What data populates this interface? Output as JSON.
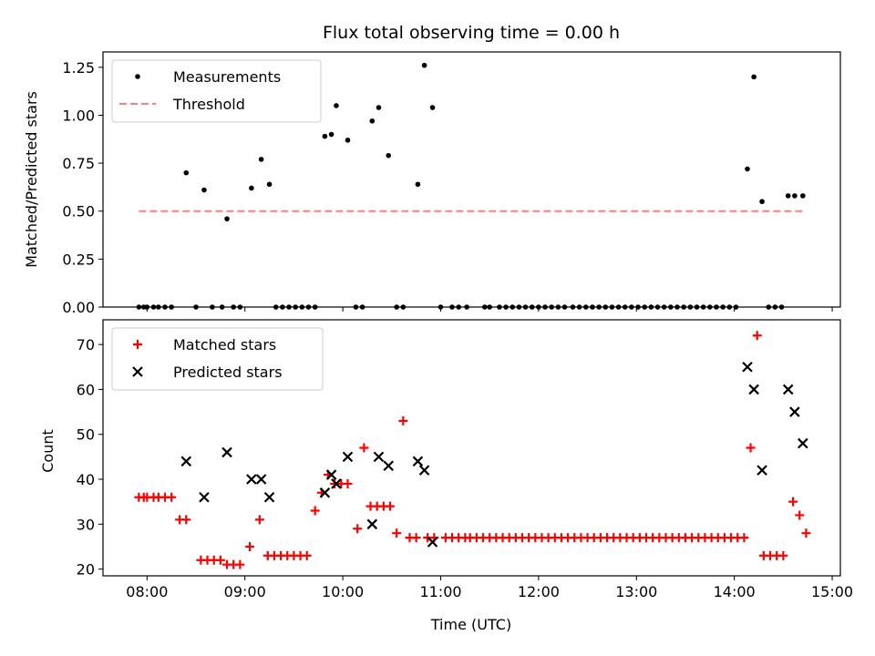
{
  "chart_data": [
    {
      "type": "scatter",
      "title": "Flux total observing time = 0.00 h",
      "xlabel": "",
      "ylabel": "Matched/Predicted stars",
      "xlim": [
        "07:33",
        "15:05"
      ],
      "ylim": [
        0,
        1.33
      ],
      "yticks": [
        "0.00",
        "0.25",
        "0.50",
        "0.75",
        "1.00",
        "1.25"
      ],
      "ytick_values": [
        0,
        0.25,
        0.5,
        0.75,
        1.0,
        1.25
      ],
      "xtick_values": [
        "08:00",
        "09:00",
        "10:00",
        "11:00",
        "12:00",
        "13:00",
        "14:00",
        "15:00"
      ],
      "legend": {
        "position": "top-left",
        "entries": [
          "Measurements",
          "Threshold"
        ]
      },
      "series": [
        {
          "name": "Measurements",
          "marker": "dot",
          "color": "#000000",
          "points": [
            [
              "07:55",
              0
            ],
            [
              "07:58",
              0
            ],
            [
              "08:00",
              0
            ],
            [
              "08:04",
              0
            ],
            [
              "08:07",
              0
            ],
            [
              "08:11",
              0
            ],
            [
              "08:15",
              0
            ],
            [
              "08:24",
              0.7
            ],
            [
              "08:30",
              0
            ],
            [
              "08:35",
              0.61
            ],
            [
              "08:40",
              0
            ],
            [
              "08:46",
              0
            ],
            [
              "08:49",
              0.46
            ],
            [
              "08:53",
              0
            ],
            [
              "08:57",
              0
            ],
            [
              "09:04",
              0.62
            ],
            [
              "09:10",
              0.77
            ],
            [
              "09:15",
              0.64
            ],
            [
              "09:19",
              0
            ],
            [
              "09:23",
              0
            ],
            [
              "09:27",
              0
            ],
            [
              "09:31",
              0
            ],
            [
              "09:35",
              0
            ],
            [
              "09:39",
              0
            ],
            [
              "09:43",
              0
            ],
            [
              "09:49",
              0.89
            ],
            [
              "09:53",
              0.9
            ],
            [
              "09:56",
              1.05
            ],
            [
              "10:03",
              0.87
            ],
            [
              "10:08",
              0
            ],
            [
              "10:12",
              0
            ],
            [
              "10:18",
              0.97
            ],
            [
              "10:22",
              1.04
            ],
            [
              "10:28",
              0.79
            ],
            [
              "10:33",
              0
            ],
            [
              "10:37",
              0
            ],
            [
              "10:46",
              0.64
            ],
            [
              "10:50",
              1.26
            ],
            [
              "10:55",
              1.04
            ],
            [
              "11:00",
              0
            ],
            [
              "11:07",
              0
            ],
            [
              "11:11",
              0
            ],
            [
              "11:16",
              0
            ],
            [
              "11:27",
              0
            ],
            [
              "11:30",
              0
            ],
            [
              "11:36",
              0
            ],
            [
              "11:40",
              0
            ],
            [
              "11:44",
              0
            ],
            [
              "11:48",
              0
            ],
            [
              "11:52",
              0
            ],
            [
              "11:56",
              0
            ],
            [
              "12:00",
              0
            ],
            [
              "12:04",
              0
            ],
            [
              "12:08",
              0
            ],
            [
              "12:12",
              0
            ],
            [
              "12:16",
              0
            ],
            [
              "12:21",
              0
            ],
            [
              "12:25",
              0
            ],
            [
              "12:29",
              0
            ],
            [
              "12:33",
              0
            ],
            [
              "12:37",
              0
            ],
            [
              "12:41",
              0
            ],
            [
              "12:45",
              0
            ],
            [
              "12:49",
              0
            ],
            [
              "12:53",
              0
            ],
            [
              "12:57",
              0
            ],
            [
              "13:01",
              0
            ],
            [
              "13:05",
              0
            ],
            [
              "13:09",
              0
            ],
            [
              "13:13",
              0
            ],
            [
              "13:17",
              0
            ],
            [
              "13:21",
              0
            ],
            [
              "13:25",
              0
            ],
            [
              "13:29",
              0
            ],
            [
              "13:33",
              0
            ],
            [
              "13:37",
              0
            ],
            [
              "13:41",
              0
            ],
            [
              "13:45",
              0
            ],
            [
              "13:49",
              0
            ],
            [
              "13:53",
              0
            ],
            [
              "13:57",
              0
            ],
            [
              "14:01",
              0
            ],
            [
              "14:08",
              0.72
            ],
            [
              "14:12",
              1.2
            ],
            [
              "14:17",
              0.55
            ],
            [
              "14:21",
              0
            ],
            [
              "14:25",
              0
            ],
            [
              "14:29",
              0
            ],
            [
              "14:33",
              0.58
            ],
            [
              "14:37",
              0.58
            ],
            [
              "14:42",
              0.58
            ]
          ]
        },
        {
          "name": "Threshold",
          "style": "dashed",
          "color": "#ff7f7f",
          "points": [
            [
              "07:55",
              0.5
            ],
            [
              "14:42",
              0.5
            ]
          ]
        }
      ]
    },
    {
      "type": "scatter",
      "title": "",
      "xlabel": "Time (UTC)",
      "ylabel": "Count",
      "xlim": [
        "07:33",
        "15:05"
      ],
      "ylim": [
        18.5,
        75.5
      ],
      "yticks": [
        "20",
        "30",
        "40",
        "50",
        "60",
        "70"
      ],
      "ytick_values": [
        20,
        30,
        40,
        50,
        60,
        70
      ],
      "xticks": [
        "08:00",
        "09:00",
        "10:00",
        "11:00",
        "12:00",
        "13:00",
        "14:00",
        "15:00"
      ],
      "legend": {
        "position": "top-left",
        "entries": [
          "Matched stars",
          "Predicted stars"
        ]
      },
      "series": [
        {
          "name": "Matched stars",
          "marker": "plus",
          "color": "#ff0000",
          "points": [
            [
              "07:55",
              36
            ],
            [
              "07:58",
              36
            ],
            [
              "08:00",
              36
            ],
            [
              "08:04",
              36
            ],
            [
              "08:07",
              36
            ],
            [
              "08:11",
              36
            ],
            [
              "08:15",
              36
            ],
            [
              "08:20",
              31
            ],
            [
              "08:24",
              31
            ],
            [
              "08:33",
              22
            ],
            [
              "08:37",
              22
            ],
            [
              "08:41",
              22
            ],
            [
              "08:45",
              22
            ],
            [
              "08:49",
              21
            ],
            [
              "08:53",
              21
            ],
            [
              "08:57",
              21
            ],
            [
              "09:03",
              25
            ],
            [
              "09:09",
              31
            ],
            [
              "09:14",
              23
            ],
            [
              "09:18",
              23
            ],
            [
              "09:22",
              23
            ],
            [
              "09:26",
              23
            ],
            [
              "09:30",
              23
            ],
            [
              "09:34",
              23
            ],
            [
              "09:38",
              23
            ],
            [
              "09:43",
              33
            ],
            [
              "09:47",
              37
            ],
            [
              "09:51",
              41
            ],
            [
              "09:55",
              39
            ],
            [
              "09:59",
              39
            ],
            [
              "10:03",
              39
            ],
            [
              "10:09",
              29
            ],
            [
              "10:13",
              47
            ],
            [
              "10:17",
              34
            ],
            [
              "10:21",
              34
            ],
            [
              "10:25",
              34
            ],
            [
              "10:29",
              34
            ],
            [
              "10:33",
              28
            ],
            [
              "10:37",
              53
            ],
            [
              "10:41",
              27
            ],
            [
              "10:45",
              27
            ],
            [
              "10:52",
              27
            ],
            [
              "10:56",
              27
            ],
            [
              "11:03",
              27
            ],
            [
              "11:07",
              27
            ],
            [
              "11:11",
              27
            ],
            [
              "11:15",
              27
            ],
            [
              "11:18",
              27
            ],
            [
              "11:22",
              27
            ],
            [
              "11:26",
              27
            ],
            [
              "11:30",
              27
            ],
            [
              "11:34",
              27
            ],
            [
              "11:38",
              27
            ],
            [
              "11:42",
              27
            ],
            [
              "11:46",
              27
            ],
            [
              "11:50",
              27
            ],
            [
              "11:54",
              27
            ],
            [
              "11:58",
              27
            ],
            [
              "12:02",
              27
            ],
            [
              "12:06",
              27
            ],
            [
              "12:10",
              27
            ],
            [
              "12:14",
              27
            ],
            [
              "12:18",
              27
            ],
            [
              "12:22",
              27
            ],
            [
              "12:26",
              27
            ],
            [
              "12:30",
              27
            ],
            [
              "12:34",
              27
            ],
            [
              "12:38",
              27
            ],
            [
              "12:42",
              27
            ],
            [
              "12:46",
              27
            ],
            [
              "12:50",
              27
            ],
            [
              "12:54",
              27
            ],
            [
              "12:58",
              27
            ],
            [
              "13:02",
              27
            ],
            [
              "13:06",
              27
            ],
            [
              "13:10",
              27
            ],
            [
              "13:14",
              27
            ],
            [
              "13:18",
              27
            ],
            [
              "13:22",
              27
            ],
            [
              "13:26",
              27
            ],
            [
              "13:30",
              27
            ],
            [
              "13:34",
              27
            ],
            [
              "13:38",
              27
            ],
            [
              "13:42",
              27
            ],
            [
              "13:46",
              27
            ],
            [
              "13:50",
              27
            ],
            [
              "13:54",
              27
            ],
            [
              "13:58",
              27
            ],
            [
              "14:02",
              27
            ],
            [
              "14:06",
              27
            ],
            [
              "14:10",
              47
            ],
            [
              "14:14",
              72
            ],
            [
              "14:18",
              23
            ],
            [
              "14:22",
              23
            ],
            [
              "14:26",
              23
            ],
            [
              "14:30",
              23
            ],
            [
              "14:36",
              35
            ],
            [
              "14:40",
              32
            ],
            [
              "14:44",
              28
            ]
          ]
        },
        {
          "name": "Predicted stars",
          "marker": "x",
          "color": "#000000",
          "points": [
            [
              "08:24",
              44
            ],
            [
              "08:35",
              36
            ],
            [
              "08:49",
              46
            ],
            [
              "09:04",
              40
            ],
            [
              "09:10",
              40
            ],
            [
              "09:15",
              36
            ],
            [
              "09:49",
              37
            ],
            [
              "09:53",
              41
            ],
            [
              "09:56",
              39
            ],
            [
              "10:03",
              45
            ],
            [
              "10:18",
              30
            ],
            [
              "10:22",
              45
            ],
            [
              "10:28",
              43
            ],
            [
              "10:46",
              44
            ],
            [
              "10:50",
              42
            ],
            [
              "10:55",
              26
            ],
            [
              "14:08",
              65
            ],
            [
              "14:12",
              60
            ],
            [
              "14:17",
              42
            ],
            [
              "14:33",
              60
            ],
            [
              "14:37",
              55
            ],
            [
              "14:42",
              48
            ]
          ]
        }
      ]
    }
  ]
}
